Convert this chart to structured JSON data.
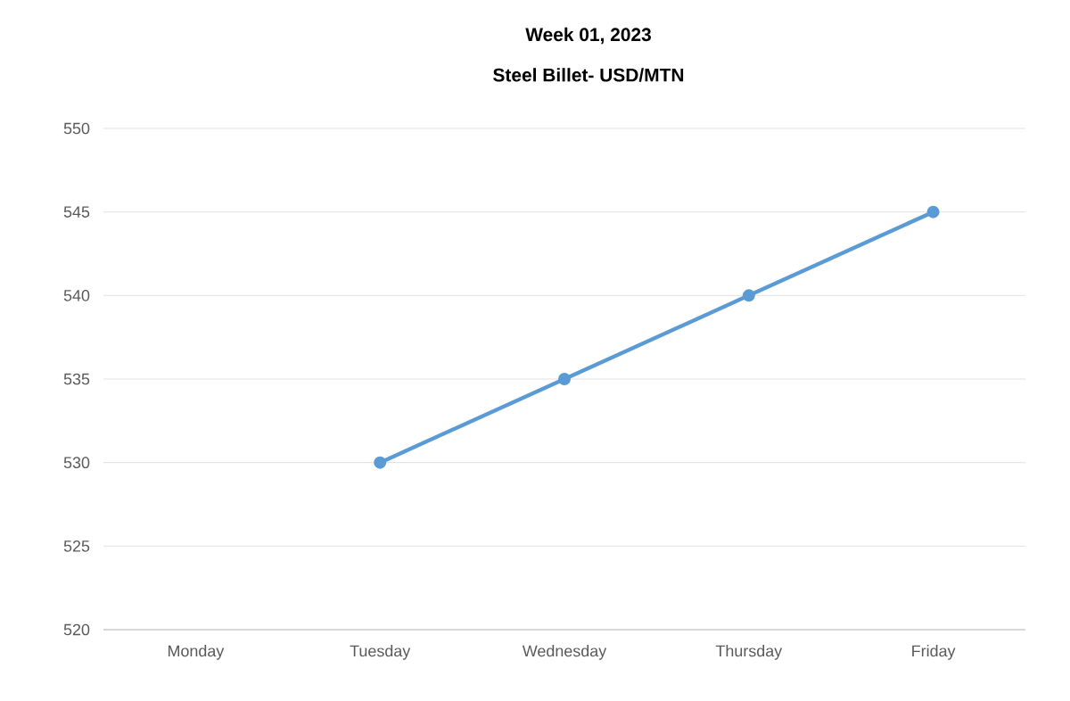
{
  "chart_data": {
    "type": "line",
    "title": "Week 01, 2023",
    "subtitle": "Steel Billet- USD/MTN",
    "categories": [
      "Monday",
      "Tuesday",
      "Wednesday",
      "Thursday",
      "Friday"
    ],
    "series": [
      {
        "color": "#5b9bd5",
        "values": [
          null,
          530,
          535,
          540,
          545
        ]
      }
    ],
    "ylim": [
      520,
      550
    ],
    "yticks": [
      520,
      525,
      530,
      535,
      540,
      545,
      550
    ],
    "grid": "y",
    "marker": "circle",
    "line_style": "solid"
  }
}
